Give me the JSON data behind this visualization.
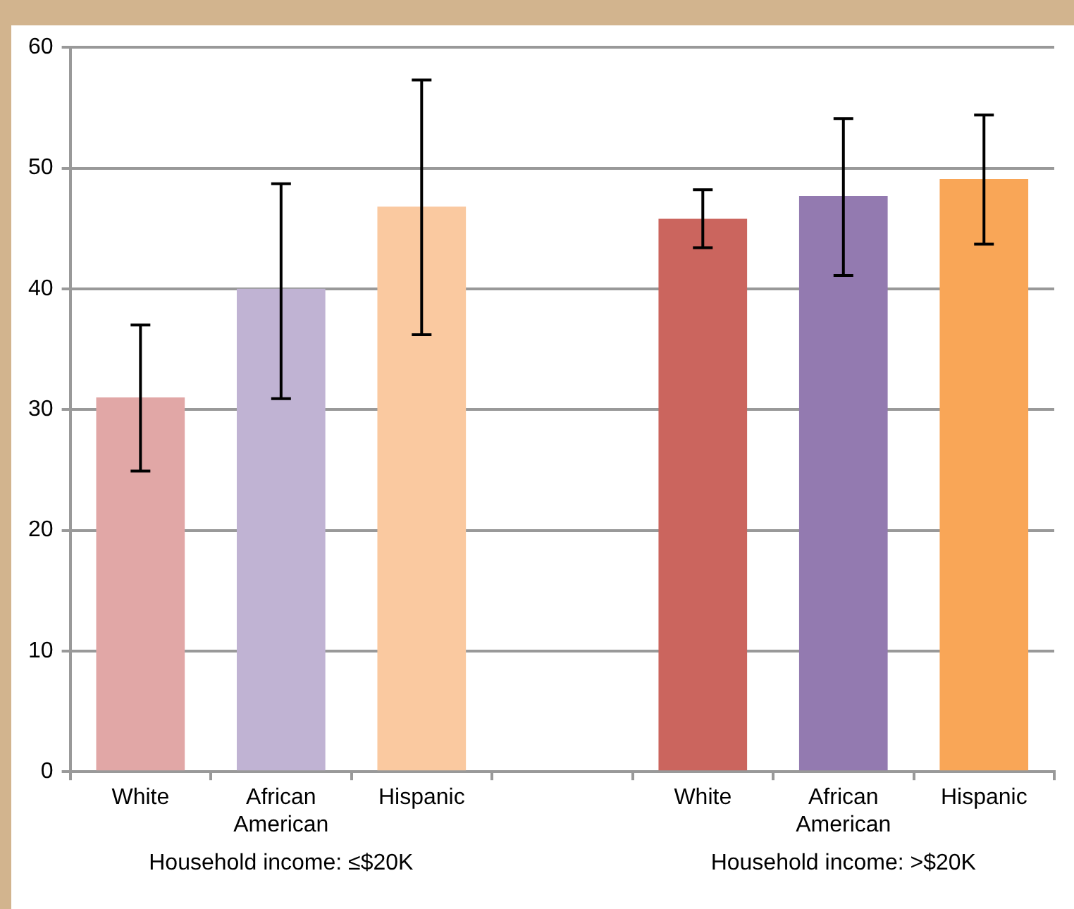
{
  "chart_data": {
    "type": "bar",
    "categories": [
      "White",
      "African American",
      "Hispanic",
      null,
      "White",
      "African American",
      "Hispanic"
    ],
    "values": [
      31.0,
      40.0,
      46.8,
      null,
      45.8,
      47.7,
      49.1
    ],
    "colors": [
      "#e1a7a6",
      "#c0b3d3",
      "#fac9a0",
      "#ffffff",
      "#cb655e",
      "#937ab0",
      "#f9a657"
    ],
    "errors": [
      [
        24.9,
        37.0
      ],
      [
        30.9,
        48.7
      ],
      [
        36.2,
        57.3
      ],
      null,
      [
        43.4,
        48.2
      ],
      [
        41.1,
        54.1
      ],
      [
        43.7,
        54.4
      ]
    ],
    "ylim": [
      0,
      60
    ],
    "yticks": [
      0,
      10,
      20,
      30,
      40,
      50,
      60
    ],
    "grid": "y",
    "legend": false,
    "annotations": [
      "Household income: ≤$20K",
      "Household income: >$20K"
    ]
  }
}
